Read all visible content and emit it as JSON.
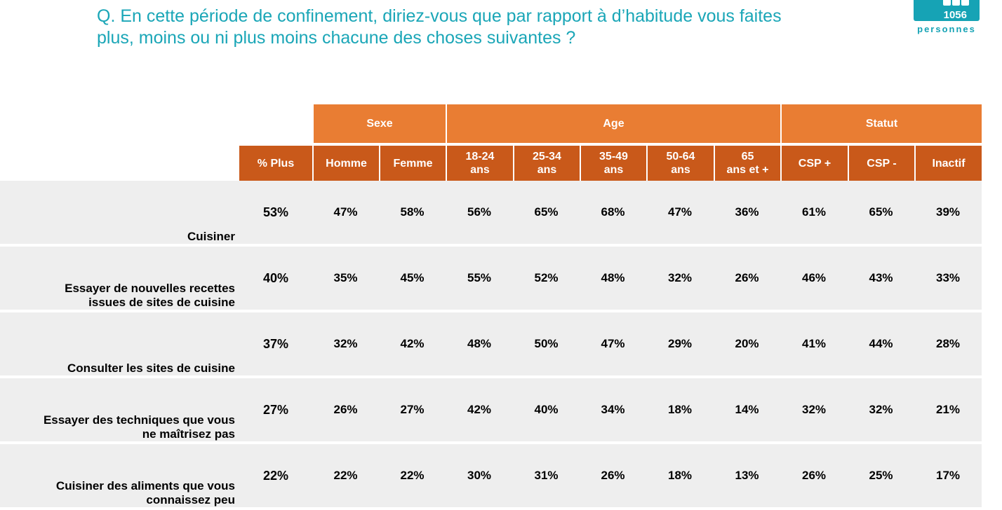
{
  "title": {
    "line1": "Q. En cette période de confinement, diriez-vous que par rapport à d’habitude vous faites",
    "line2": "plus, moins ou ni plus moins chacune des choses suivantes ?"
  },
  "badge": {
    "count": "1056",
    "label": "personnes"
  },
  "colors": {
    "title": "#1aa6b7",
    "header_group": "#e97d33",
    "header_sub": "#c9591a",
    "row_shade": "#eeeeee"
  },
  "table": {
    "groups": {
      "sexe": "Sexe",
      "age": "Age",
      "statut": "Statut"
    },
    "columns": {
      "plus": "% Plus",
      "homme": "Homme",
      "femme": "Femme",
      "age1_top": "18-24",
      "age1_bot": "ans",
      "age2_top": "25-34",
      "age2_bot": "ans",
      "age3_top": "35-49",
      "age3_bot": "ans",
      "age4_top": "50-64",
      "age4_bot": "ans",
      "age5_top": "65",
      "age5_bot": "ans et +",
      "csp_plus": "CSP +",
      "csp_minus": "CSP -",
      "inactif": "Inactif"
    },
    "rows": [
      {
        "label1": "Cuisiner",
        "label2": "",
        "values": [
          "53%",
          "47%",
          "58%",
          "56%",
          "65%",
          "68%",
          "47%",
          "36%",
          "61%",
          "65%",
          "39%"
        ]
      },
      {
        "label1": "Essayer de nouvelles recettes",
        "label2": "issues de sites de cuisine",
        "values": [
          "40%",
          "35%",
          "45%",
          "55%",
          "52%",
          "48%",
          "32%",
          "26%",
          "46%",
          "43%",
          "33%"
        ]
      },
      {
        "label1": "Consulter les sites de cuisine",
        "label2": "",
        "values": [
          "37%",
          "32%",
          "42%",
          "48%",
          "50%",
          "47%",
          "29%",
          "20%",
          "41%",
          "44%",
          "28%"
        ]
      },
      {
        "label1": "Essayer des techniques que vous",
        "label2": "ne maîtrisez pas",
        "values": [
          "27%",
          "26%",
          "27%",
          "42%",
          "40%",
          "34%",
          "18%",
          "14%",
          "32%",
          "32%",
          "21%"
        ]
      },
      {
        "label1": "Cuisiner des aliments que vous",
        "label2": "connaissez peu",
        "values": [
          "22%",
          "22%",
          "22%",
          "30%",
          "31%",
          "26%",
          "18%",
          "13%",
          "26%",
          "25%",
          "17%"
        ]
      }
    ]
  }
}
